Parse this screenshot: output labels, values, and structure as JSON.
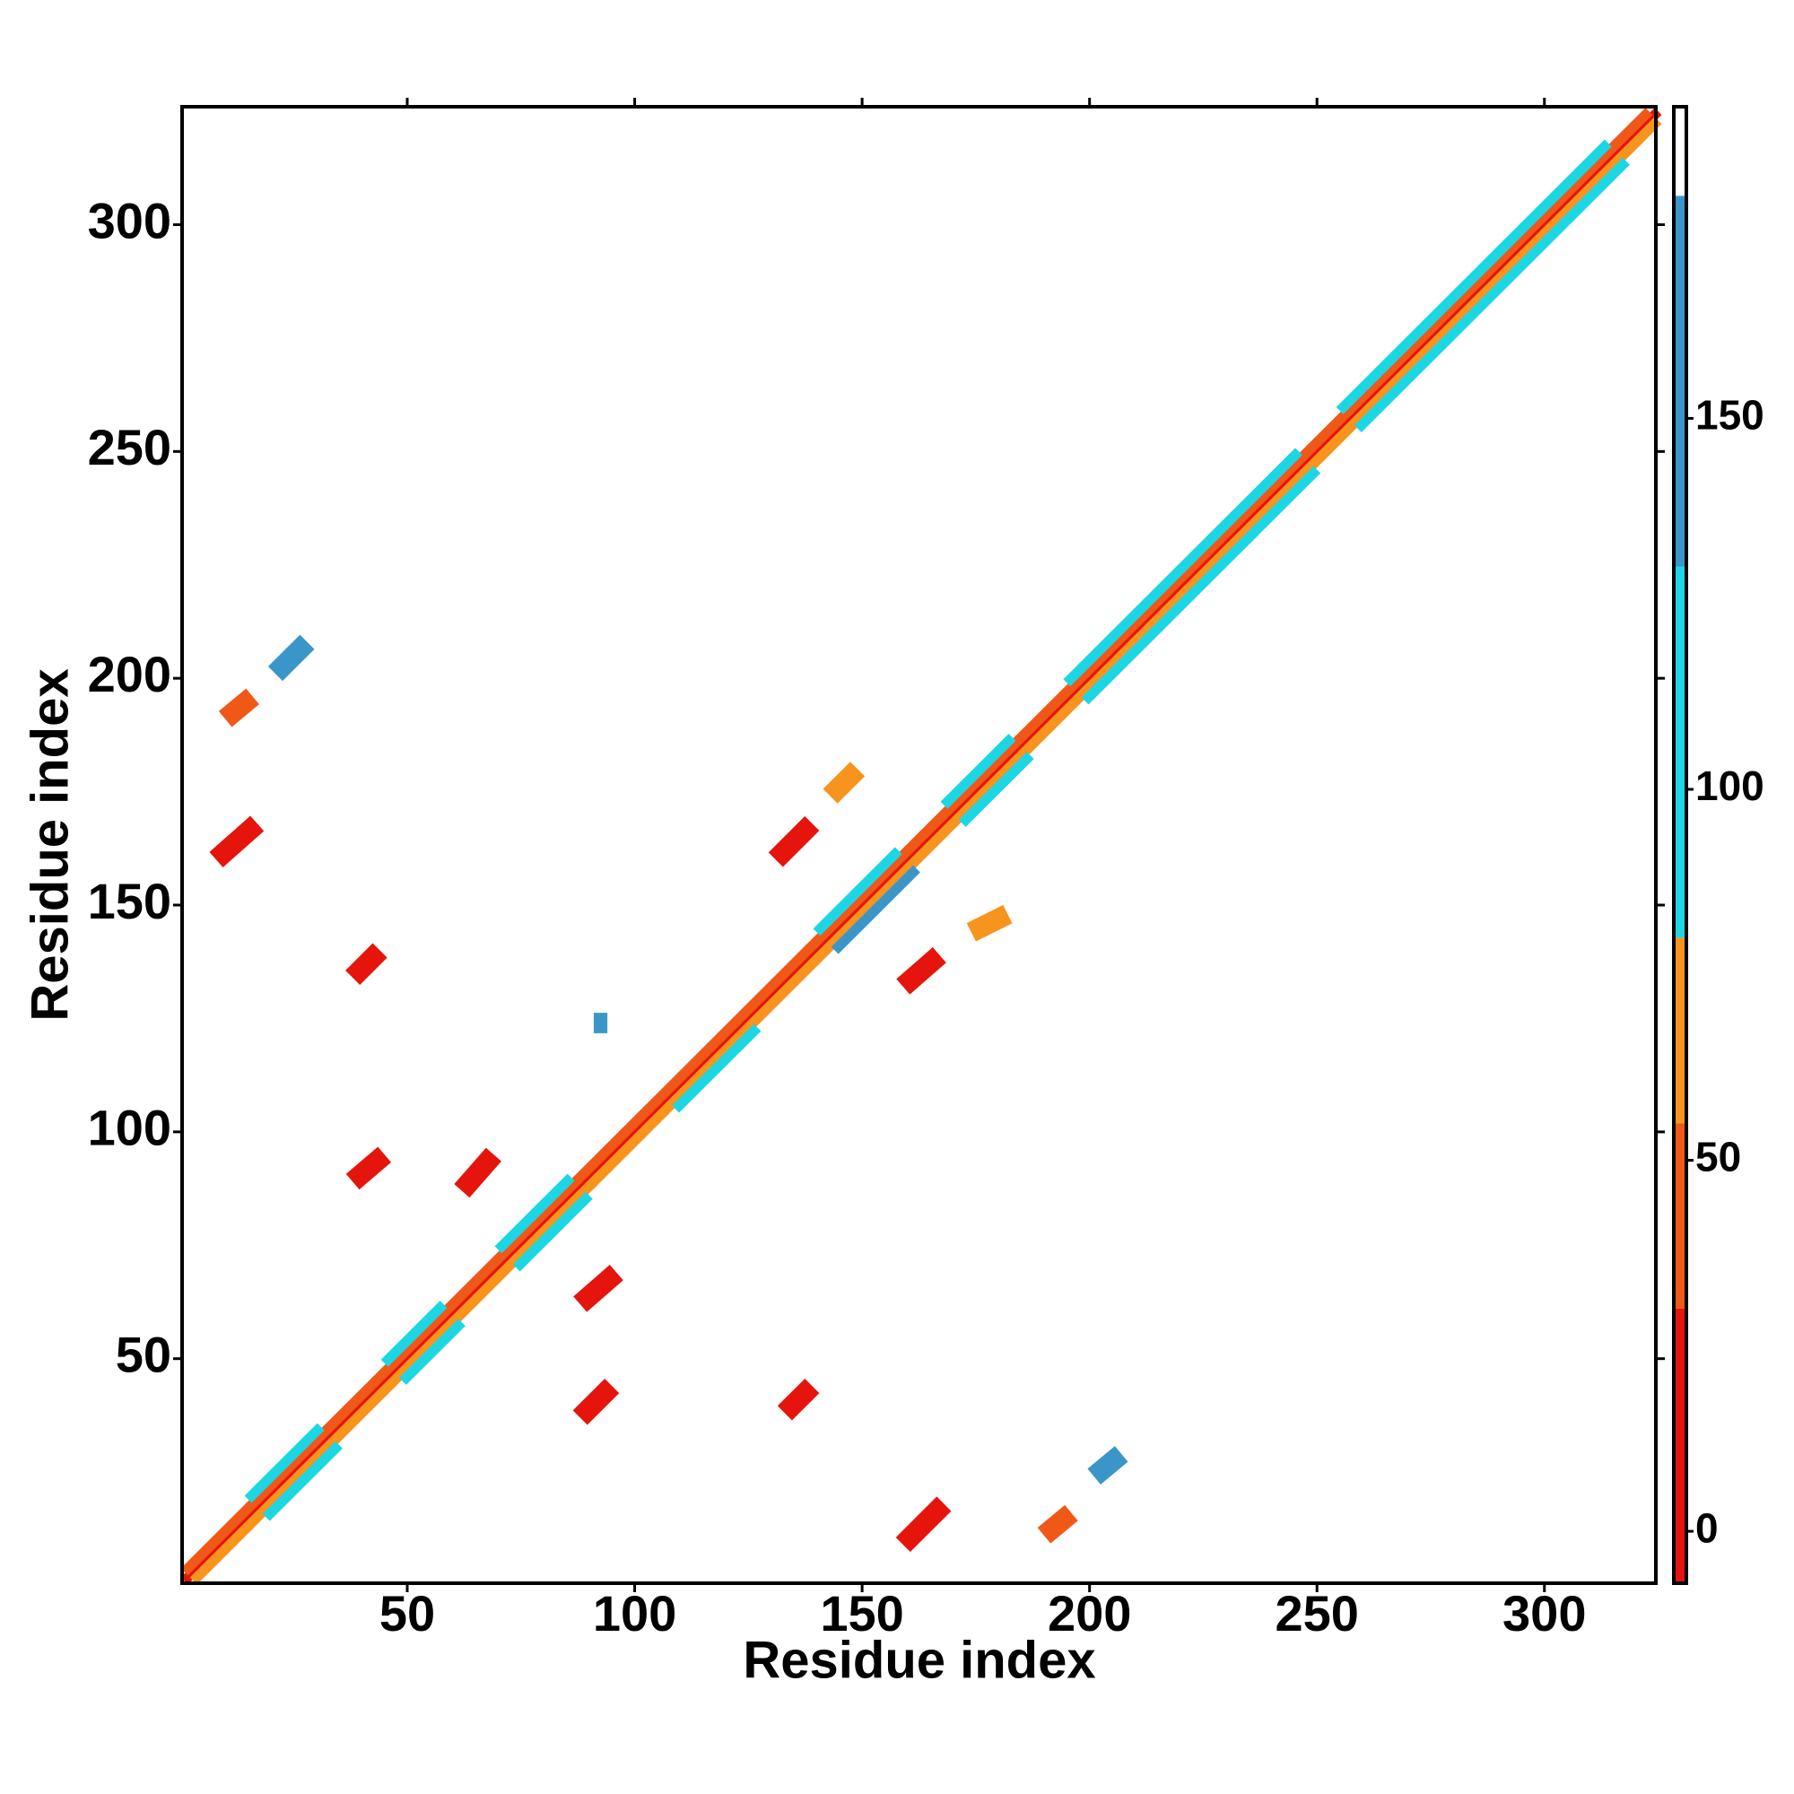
{
  "chart_data": {
    "type": "heatmap",
    "xlabel": "Residue index",
    "ylabel": "Residue index",
    "xlim": [
      0.5,
      324.5
    ],
    "ylim": [
      0.5,
      326
    ],
    "xticks": [
      50,
      100,
      150,
      200,
      250,
      300
    ],
    "yticks": [
      50,
      100,
      150,
      200,
      250,
      300
    ],
    "colorbar": {
      "lim": [
        -7,
        192
      ],
      "ticks": [
        0,
        50,
        100,
        150
      ],
      "segments": [
        {
          "range": [
            -7,
            30
          ],
          "color": "#e5150d"
        },
        {
          "range": [
            30,
            55
          ],
          "color": "#f05818"
        },
        {
          "range": [
            55,
            80
          ],
          "color": "#f7941d"
        },
        {
          "range": [
            80,
            130
          ],
          "color": "#1dd6e4"
        },
        {
          "range": [
            130,
            180
          ],
          "color": "#3a96c8"
        },
        {
          "range": [
            180,
            192
          ],
          "color": "#ffffff"
        }
      ]
    },
    "contacts": [
      {
        "x": [
          1,
          325
        ],
        "y": [
          1,
          325
        ],
        "value": 10
      },
      {
        "x": [
          3,
          325
        ],
        "y": [
          1,
          323
        ],
        "value": 60
      },
      {
        "x": [
          1,
          323
        ],
        "y": [
          3,
          325
        ],
        "value": 45
      },
      {
        "x": [
          19,
          35
        ],
        "y": [
          15,
          31
        ],
        "value": 100
      },
      {
        "x": [
          15,
          31
        ],
        "y": [
          19,
          35
        ],
        "value": 100
      },
      {
        "x": [
          49,
          62
        ],
        "y": [
          45,
          58
        ],
        "value": 100
      },
      {
        "x": [
          45,
          58
        ],
        "y": [
          49,
          62
        ],
        "value": 100
      },
      {
        "x": [
          74,
          90
        ],
        "y": [
          70,
          86
        ],
        "value": 100
      },
      {
        "x": [
          70,
          86
        ],
        "y": [
          74,
          90
        ],
        "value": 100
      },
      {
        "x": [
          109,
          127
        ],
        "y": [
          105,
          123
        ],
        "value": 100
      },
      {
        "x": [
          144,
          162
        ],
        "y": [
          140,
          158
        ],
        "value": 140
      },
      {
        "x": [
          140,
          158
        ],
        "y": [
          144,
          162
        ],
        "value": 100
      },
      {
        "x": [
          172,
          187
        ],
        "y": [
          168,
          183
        ],
        "value": 100
      },
      {
        "x": [
          168,
          183
        ],
        "y": [
          172,
          187
        ],
        "value": 100
      },
      {
        "x": [
          199,
          250
        ],
        "y": [
          195,
          246
        ],
        "value": 100
      },
      {
        "x": [
          195,
          246
        ],
        "y": [
          199,
          250
        ],
        "value": 100
      },
      {
        "x": [
          259,
          318
        ],
        "y": [
          255,
          314
        ],
        "value": 100
      },
      {
        "x": [
          255,
          314
        ],
        "y": [
          259,
          318
        ],
        "value": 100
      },
      {
        "x": [
          8,
          17
        ],
        "y": [
          160,
          168
        ],
        "value": 10
      },
      {
        "x": [
          10,
          16
        ],
        "y": [
          191,
          196
        ],
        "value": 40
      },
      {
        "x": [
          38,
          44
        ],
        "y": [
          134,
          140
        ],
        "value": 15
      },
      {
        "x": [
          38,
          45
        ],
        "y": [
          89,
          95
        ],
        "value": 20
      },
      {
        "x": [
          62,
          69
        ],
        "y": [
          87,
          95
        ],
        "value": 20
      },
      {
        "x": [
          88,
          96
        ],
        "y": [
          62,
          69
        ],
        "value": 20
      },
      {
        "x": [
          88,
          95
        ],
        "y": [
          37,
          44
        ],
        "value": 15
      },
      {
        "x": [
          133,
          139
        ],
        "y": [
          38,
          44
        ],
        "value": 15
      },
      {
        "x": [
          131,
          139
        ],
        "y": [
          160,
          168
        ],
        "value": 15
      },
      {
        "x": [
          159,
          167
        ],
        "y": [
          132,
          139
        ],
        "value": 15
      },
      {
        "x": [
          159,
          168
        ],
        "y": [
          9,
          18
        ],
        "value": 10
      },
      {
        "x": [
          190,
          196
        ],
        "y": [
          11,
          16
        ],
        "value": 40
      },
      {
        "x": [
          21,
          28
        ],
        "y": [
          201,
          208
        ],
        "value": 140
      },
      {
        "x": [
          201,
          207
        ],
        "y": [
          24,
          29
        ],
        "value": 140
      },
      {
        "x": [
          91,
          94
        ],
        "y": [
          124,
          124
        ],
        "value": 140
      },
      {
        "x": [
          174,
          182
        ],
        "y": [
          144,
          148
        ],
        "value": 60
      },
      {
        "x": [
          143,
          149
        ],
        "y": [
          174,
          180
        ],
        "value": 60
      }
    ]
  }
}
